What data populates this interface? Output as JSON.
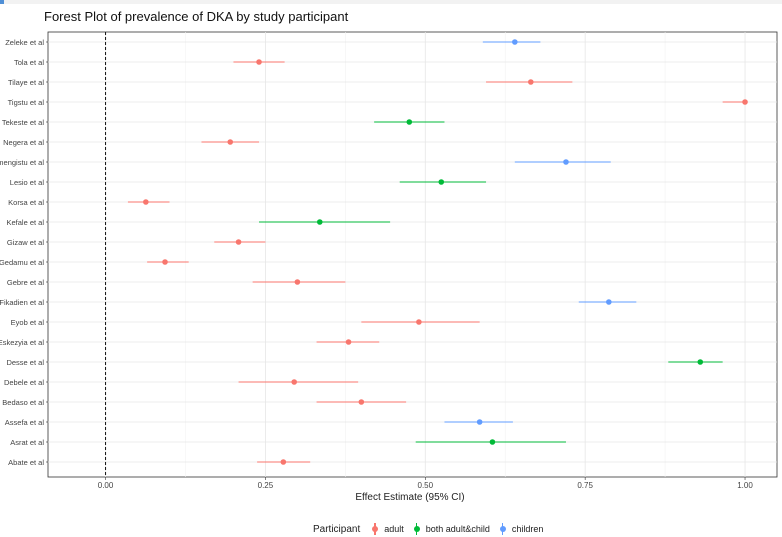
{
  "chart_data": {
    "type": "forest",
    "title": "Forest Plot of prevalence of DKA by study participant",
    "xlabel": "Effect Estimate (95% CI)",
    "ylabel": "",
    "xlim": [
      -0.09,
      1.05
    ],
    "xticks": [
      0.0,
      0.25,
      0.5,
      0.75,
      1.0
    ],
    "xtick_labels": [
      "0.00",
      "0.25",
      "0.50",
      "0.75",
      "1.00"
    ],
    "reference_line": 0,
    "grid": true,
    "legend": {
      "title": "Participant",
      "position": "bottom",
      "entries": [
        {
          "name": "adult",
          "color": "#F8766D"
        },
        {
          "name": "both adult&child",
          "color": "#00BA38"
        },
        {
          "name": "children",
          "color": "#619CFF"
        }
      ]
    },
    "studies": [
      {
        "label": "Zeleke et al",
        "group": "children",
        "estimate": 0.64,
        "lower": 0.59,
        "upper": 0.68
      },
      {
        "label": "Tola et al",
        "group": "adult",
        "estimate": 0.24,
        "lower": 0.2,
        "upper": 0.28
      },
      {
        "label": "Tilaye et al",
        "group": "adult",
        "estimate": 0.665,
        "lower": 0.595,
        "upper": 0.73
      },
      {
        "label": "Tigstu et al",
        "group": "adult",
        "estimate": 1.0,
        "lower": 0.965,
        "upper": 1.0
      },
      {
        "label": "Tekeste et al",
        "group": "both adult&child",
        "estimate": 0.475,
        "lower": 0.42,
        "upper": 0.53
      },
      {
        "label": "Negera et al",
        "group": "adult",
        "estimate": 0.195,
        "lower": 0.15,
        "upper": 0.24
      },
      {
        "label": "mengistu et al",
        "group": "children",
        "estimate": 0.72,
        "lower": 0.64,
        "upper": 0.79
      },
      {
        "label": "Lesio et al",
        "group": "both adult&child",
        "estimate": 0.525,
        "lower": 0.46,
        "upper": 0.595
      },
      {
        "label": "Korsa et al",
        "group": "adult",
        "estimate": 0.063,
        "lower": 0.035,
        "upper": 0.1
      },
      {
        "label": "Kefale et al",
        "group": "both adult&child",
        "estimate": 0.335,
        "lower": 0.24,
        "upper": 0.445
      },
      {
        "label": "Gizaw et al",
        "group": "adult",
        "estimate": 0.208,
        "lower": 0.17,
        "upper": 0.25
      },
      {
        "label": "Gedamu et al",
        "group": "adult",
        "estimate": 0.093,
        "lower": 0.065,
        "upper": 0.13
      },
      {
        "label": "Gebre et al",
        "group": "adult",
        "estimate": 0.3,
        "lower": 0.23,
        "upper": 0.375
      },
      {
        "label": "Fikadien et al",
        "group": "children",
        "estimate": 0.787,
        "lower": 0.74,
        "upper": 0.83
      },
      {
        "label": "Eyob et al",
        "group": "adult",
        "estimate": 0.49,
        "lower": 0.4,
        "upper": 0.585
      },
      {
        "label": "Eskezyia et al",
        "group": "adult",
        "estimate": 0.38,
        "lower": 0.33,
        "upper": 0.428
      },
      {
        "label": "Desse et al",
        "group": "both adult&child",
        "estimate": 0.93,
        "lower": 0.88,
        "upper": 0.965
      },
      {
        "label": "Debele et al",
        "group": "adult",
        "estimate": 0.295,
        "lower": 0.208,
        "upper": 0.395
      },
      {
        "label": "Bedaso et al",
        "group": "adult",
        "estimate": 0.4,
        "lower": 0.33,
        "upper": 0.47
      },
      {
        "label": "Assefa et al",
        "group": "children",
        "estimate": 0.585,
        "lower": 0.53,
        "upper": 0.637
      },
      {
        "label": "Asrat et al",
        "group": "both adult&child",
        "estimate": 0.605,
        "lower": 0.485,
        "upper": 0.72
      },
      {
        "label": "Abate et al",
        "group": "adult",
        "estimate": 0.278,
        "lower": 0.237,
        "upper": 0.32
      }
    ]
  }
}
